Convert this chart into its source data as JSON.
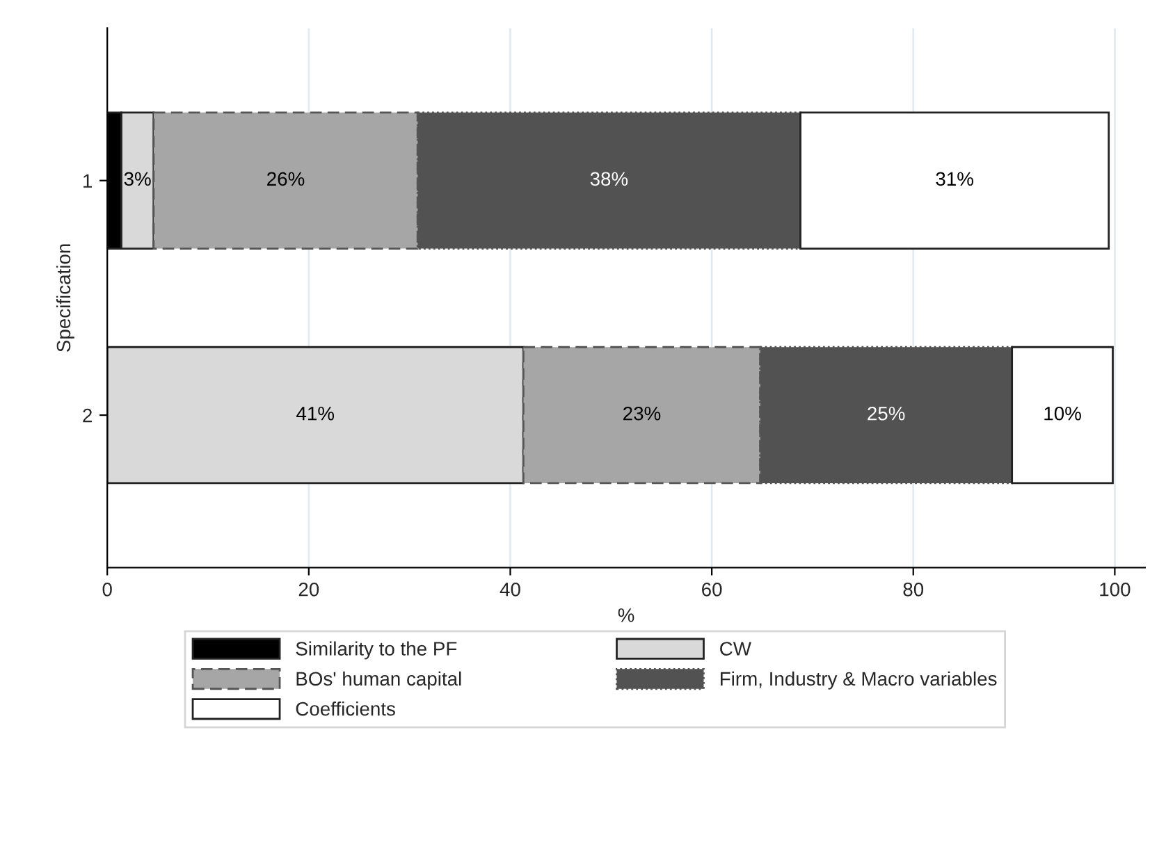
{
  "chart_data": {
    "type": "bar",
    "orientation": "horizontal",
    "stacked": true,
    "categories": [
      "1",
      "2"
    ],
    "xlabel": "%",
    "ylabel": "Specification",
    "xlim": [
      0,
      103
    ],
    "xticks": [
      0,
      20,
      40,
      60,
      80,
      100
    ],
    "grid": "x",
    "legend": "bottom",
    "series": [
      {
        "name": "Similarity to the PF",
        "color": "#000000",
        "line_style": "solid",
        "values": [
          1.4,
          0
        ],
        "value_labels": [
          null,
          null
        ]
      },
      {
        "name": "CW",
        "color": "#d9d9d9",
        "line_style": "solid",
        "values": [
          3.2,
          41.3
        ],
        "value_labels": [
          "3%",
          "41%"
        ]
      },
      {
        "name": "BOs' human capital",
        "color": "#a6a6a6",
        "line_style": "dashed",
        "values": [
          26.2,
          23.5
        ],
        "value_labels": [
          "26%",
          "23%"
        ]
      },
      {
        "name": "Firm, Industry & Macro variables",
        "color": "#525252",
        "line_style": "dotted",
        "values": [
          38.0,
          25.0
        ],
        "value_labels": [
          "38%",
          "25%"
        ]
      },
      {
        "name": "Coefficients",
        "color": "#ffffff",
        "line_style": "solid",
        "values": [
          30.6,
          10.0
        ],
        "value_labels": [
          "31%",
          "10%"
        ]
      }
    ]
  }
}
